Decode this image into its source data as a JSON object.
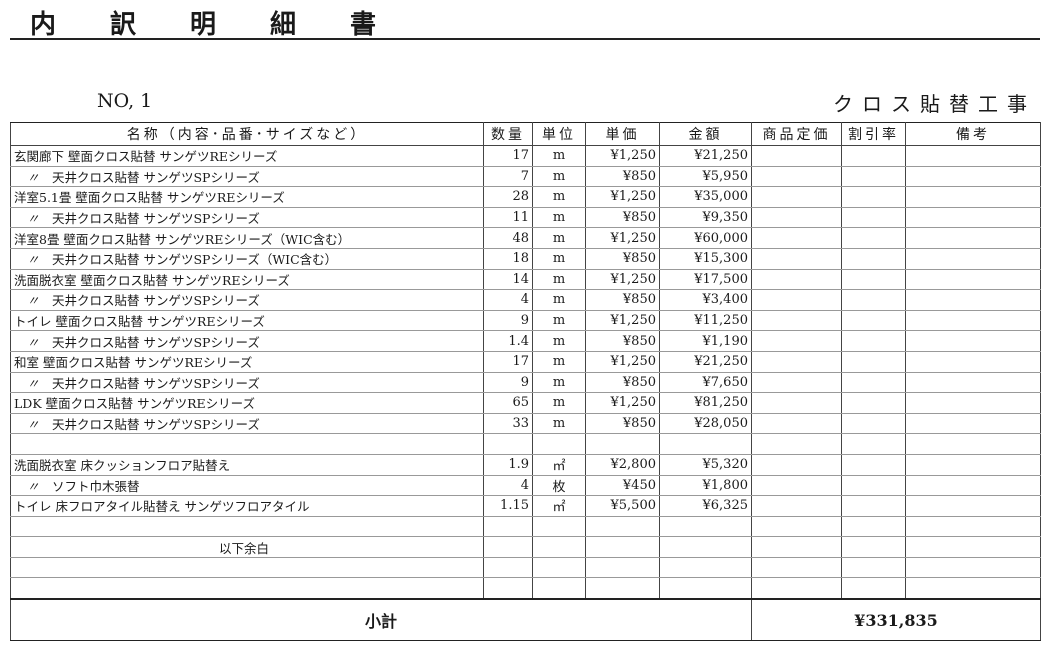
{
  "header": {
    "title": "内訳明細書",
    "no": "NO, 1",
    "project": "クロス貼替工事"
  },
  "table": {
    "columns": [
      "名称（内容･品番･サイズなど）",
      "数量",
      "単位",
      "単価",
      "金額",
      "商品定価",
      "割引率",
      "備考"
    ],
    "rows": [
      {
        "ditto": false,
        "name": "玄関廊下  壁面クロス貼替  サンゲツREシリーズ",
        "qty": "17",
        "unit": "m",
        "price": "¥1,250",
        "amount": "¥21,250"
      },
      {
        "ditto": true,
        "name": "天井クロス貼替  サンゲツSPシリーズ",
        "qty": "7",
        "unit": "m",
        "price": "¥850",
        "amount": "¥5,950"
      },
      {
        "ditto": false,
        "name": "洋室5.1畳  壁面クロス貼替  サンゲツREシリーズ",
        "qty": "28",
        "unit": "m",
        "price": "¥1,250",
        "amount": "¥35,000"
      },
      {
        "ditto": true,
        "name": "天井クロス貼替  サンゲツSPシリーズ",
        "qty": "11",
        "unit": "m",
        "price": "¥850",
        "amount": "¥9,350"
      },
      {
        "ditto": false,
        "name": "洋室8畳  壁面クロス貼替  サンゲツREシリーズ（WIC含む）",
        "qty": "48",
        "unit": "m",
        "price": "¥1,250",
        "amount": "¥60,000"
      },
      {
        "ditto": true,
        "name": "天井クロス貼替  サンゲツSPシリーズ（WIC含む）",
        "qty": "18",
        "unit": "m",
        "price": "¥850",
        "amount": "¥15,300"
      },
      {
        "ditto": false,
        "name": "洗面脱衣室  壁面クロス貼替  サンゲツREシリーズ",
        "qty": "14",
        "unit": "m",
        "price": "¥1,250",
        "amount": "¥17,500"
      },
      {
        "ditto": true,
        "name": "天井クロス貼替  サンゲツSPシリーズ",
        "qty": "4",
        "unit": "m",
        "price": "¥850",
        "amount": "¥3,400"
      },
      {
        "ditto": false,
        "name": "トイレ  壁面クロス貼替  サンゲツREシリーズ",
        "qty": "9",
        "unit": "m",
        "price": "¥1,250",
        "amount": "¥11,250"
      },
      {
        "ditto": true,
        "name": "天井クロス貼替  サンゲツSPシリーズ",
        "qty": "1.4",
        "unit": "m",
        "price": "¥850",
        "amount": "¥1,190"
      },
      {
        "ditto": false,
        "name": "和室  壁面クロス貼替  サンゲツREシリーズ",
        "qty": "17",
        "unit": "m",
        "price": "¥1,250",
        "amount": "¥21,250"
      },
      {
        "ditto": true,
        "name": "天井クロス貼替  サンゲツSPシリーズ",
        "qty": "9",
        "unit": "m",
        "price": "¥850",
        "amount": "¥7,650"
      },
      {
        "ditto": false,
        "name": "LDK  壁面クロス貼替  サンゲツREシリーズ",
        "qty": "65",
        "unit": "m",
        "price": "¥1,250",
        "amount": "¥81,250"
      },
      {
        "ditto": true,
        "name": "天井クロス貼替  サンゲツSPシリーズ",
        "qty": "33",
        "unit": "m",
        "price": "¥850",
        "amount": "¥28,050"
      },
      {
        "ditto": false,
        "name": "",
        "qty": "",
        "unit": "",
        "price": "",
        "amount": ""
      },
      {
        "ditto": false,
        "name": "洗面脱衣室  床クッションフロア貼替え",
        "qty": "1.9",
        "unit": "㎡",
        "price": "¥2,800",
        "amount": "¥5,320"
      },
      {
        "ditto": true,
        "name": "ソフト巾木張替",
        "qty": "4",
        "unit": "枚",
        "price": "¥450",
        "amount": "¥1,800"
      },
      {
        "ditto": false,
        "name": "トイレ  床フロアタイル貼替え  サンゲツフロアタイル",
        "qty": "1.15",
        "unit": "㎡",
        "price": "¥5,500",
        "amount": "¥6,325"
      },
      {
        "ditto": false,
        "name": "",
        "qty": "",
        "unit": "",
        "price": "",
        "amount": ""
      },
      {
        "ditto": false,
        "yohaku": true,
        "name": "以下余白",
        "qty": "",
        "unit": "",
        "price": "",
        "amount": ""
      },
      {
        "ditto": false,
        "name": "",
        "qty": "",
        "unit": "",
        "price": "",
        "amount": ""
      },
      {
        "ditto": false,
        "name": "",
        "qty": "",
        "unit": "",
        "price": "",
        "amount": ""
      }
    ],
    "ditto_mark": "〃",
    "subtotal": {
      "label": "小計",
      "amount": "¥331,835"
    }
  }
}
